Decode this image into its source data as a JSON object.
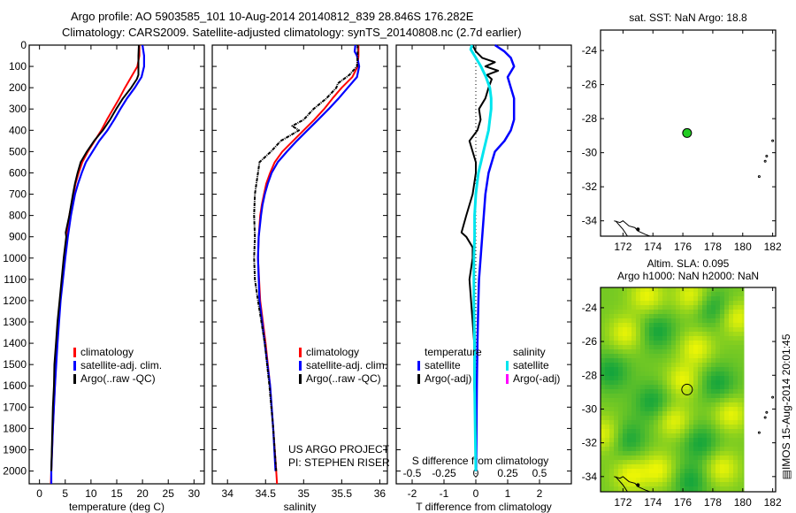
{
  "header": {
    "line1": "Argo profile: AO 5903585_101 10-Aug-2014 20140812_839 28.846S 176.282E",
    "line2": "Climatology: CARS2009. Satellite-adjusted climatology: synTS_20140808.nc (2.7d earlier)"
  },
  "colors": {
    "climatology": "#ff0000",
    "satellite": "#0000ff",
    "argo": "#000000",
    "sal_satellite": "#00e5ee",
    "sal_argo": "#ff00ff",
    "float_marker": "#22cc22"
  },
  "chart_data": [
    {
      "id": "temperature",
      "type": "line",
      "xlabel": "temperature (deg C)",
      "ylabel": "",
      "xlim": [
        -2,
        32
      ],
      "ylim": [
        2060,
        0
      ],
      "xticks": [
        0,
        5,
        10,
        15,
        20,
        25,
        30
      ],
      "yticks": [
        0,
        100,
        200,
        300,
        400,
        500,
        600,
        700,
        800,
        900,
        1000,
        1100,
        1200,
        1300,
        1400,
        1500,
        1600,
        1700,
        1800,
        1900,
        2000
      ],
      "legend": [
        "climatology",
        "satellite-adj. clim.",
        "Argo(..raw -QC)"
      ],
      "legend_location": "center",
      "series": [
        {
          "name": "climatology",
          "depth": [
            0,
            50,
            100,
            150,
            200,
            250,
            300,
            350,
            400,
            450,
            500,
            550,
            600,
            650,
            700,
            800,
            900,
            1000,
            1200,
            1400,
            1600,
            1800,
            2000,
            2060
          ],
          "values": [
            19.4,
            19.4,
            19.0,
            17.8,
            16.6,
            15.5,
            14.3,
            13.1,
            12.0,
            10.7,
            9.4,
            8.3,
            7.6,
            7.0,
            6.6,
            5.8,
            5.3,
            4.8,
            4.0,
            3.4,
            3.0,
            2.6,
            2.3,
            2.2
          ]
        },
        {
          "name": "satellite-adj. clim.",
          "depth": [
            0,
            50,
            100,
            150,
            200,
            250,
            300,
            350,
            400,
            450,
            500,
            550,
            600,
            650,
            700,
            800,
            900,
            1000,
            1200,
            1400,
            1600,
            1800,
            2000,
            2060
          ],
          "values": [
            20.0,
            20.3,
            20.3,
            19.8,
            18.5,
            17.0,
            15.7,
            14.5,
            13.2,
            11.6,
            10.3,
            9.0,
            8.2,
            7.5,
            6.9,
            6.1,
            5.5,
            5.0,
            4.1,
            3.5,
            3.0,
            2.6,
            2.3,
            2.3
          ]
        },
        {
          "name": "Argo(..raw -QC)",
          "depth": [
            0,
            50,
            100,
            140,
            160,
            200,
            250,
            300,
            350,
            400,
            450,
            500,
            550,
            600,
            650,
            700,
            800,
            880,
            900,
            1000,
            1100,
            1200,
            1300,
            1400,
            1500,
            1600,
            1700,
            1800,
            1900,
            2000
          ],
          "values": [
            19.3,
            19.2,
            19.2,
            19.2,
            18.9,
            17.8,
            16.2,
            14.9,
            13.7,
            12.3,
            10.6,
            9.2,
            8.0,
            7.4,
            6.9,
            6.5,
            5.8,
            5.1,
            5.2,
            4.7,
            4.3,
            3.9,
            3.5,
            3.2,
            2.9,
            2.8,
            2.6,
            2.5,
            2.4,
            2.3
          ]
        }
      ]
    },
    {
      "id": "salinity",
      "type": "line",
      "xlabel": "salinity",
      "xlim": [
        33.8,
        36.1
      ],
      "ylim": [
        2060,
        0
      ],
      "xticks": [
        34,
        34.5,
        35,
        35.5,
        36
      ],
      "legend": [
        "climatology",
        "satellite-adj. clim.",
        "Argo(..raw -QC)"
      ],
      "legend_location": "center-right",
      "annotation": [
        "US ARGO PROJECT",
        "PI: STEPHEN RISER"
      ],
      "series": [
        {
          "name": "climatology",
          "depth": [
            0,
            50,
            100,
            150,
            200,
            250,
            300,
            350,
            400,
            450,
            500,
            550,
            600,
            650,
            700,
            750,
            800,
            900,
            1000,
            1200,
            1400,
            1600,
            1800,
            2000,
            2060
          ],
          "values": [
            35.72,
            35.72,
            35.71,
            35.64,
            35.5,
            35.38,
            35.27,
            35.14,
            35.0,
            34.86,
            34.72,
            34.62,
            34.56,
            34.51,
            34.48,
            34.45,
            34.43,
            34.41,
            34.4,
            34.43,
            34.5,
            34.56,
            34.6,
            34.64,
            34.65
          ]
        },
        {
          "name": "satellite-adj. clim.",
          "depth": [
            0,
            30,
            50,
            100,
            150,
            200,
            250,
            300,
            350,
            400,
            450,
            500,
            550,
            600,
            650,
            700,
            750,
            800,
            900,
            1000,
            1200,
            1400,
            1600,
            1800,
            2000
          ],
          "values": [
            35.68,
            35.67,
            35.7,
            35.73,
            35.7,
            35.58,
            35.46,
            35.33,
            35.19,
            35.05,
            34.91,
            34.78,
            34.66,
            34.58,
            34.53,
            34.49,
            34.46,
            34.44,
            34.41,
            34.4,
            34.42,
            34.49,
            34.56,
            34.6,
            34.63
          ]
        },
        {
          "name": "Argo(..raw -QC)",
          "depth": [
            0,
            50,
            100,
            140,
            180,
            200,
            250,
            300,
            350,
            380,
            400,
            450,
            500,
            550,
            600,
            650,
            700,
            800,
            900,
            1000,
            1100,
            1200,
            1400,
            1600,
            1800,
            2000
          ],
          "values": [
            35.71,
            35.71,
            35.7,
            35.6,
            35.45,
            35.43,
            35.3,
            35.13,
            35.0,
            34.85,
            34.94,
            34.7,
            34.57,
            34.42,
            34.4,
            34.38,
            34.36,
            34.35,
            34.36,
            34.35,
            34.36,
            34.4,
            34.49,
            34.55,
            34.6,
            34.64
          ]
        }
      ]
    },
    {
      "id": "differences",
      "type": "line",
      "xlabel": "T difference from climatology",
      "x2label": "S difference from climatology",
      "xlim": [
        -2.5,
        3.0
      ],
      "x2lim": [
        -0.625,
        0.75
      ],
      "ylim": [
        2060,
        0
      ],
      "xticks": [
        -2,
        -1,
        0,
        1,
        2
      ],
      "x2ticks": [
        -0.5,
        -0.25,
        0,
        0.25,
        0.5
      ],
      "x2ticklabels": [
        "-0.5",
        "-0.25",
        "0",
        "0.25",
        "0.5"
      ],
      "legend_groups": [
        {
          "title": "temperature",
          "entries": [
            "satellite",
            "Argo(-adj)"
          ]
        },
        {
          "title": "salinity",
          "entries": [
            "satellite",
            "Argo(-adj)"
          ]
        }
      ],
      "series": [
        {
          "name": "temperature satellite",
          "axis": "T",
          "depth": [
            0,
            30,
            60,
            100,
            150,
            200,
            250,
            300,
            350,
            400,
            450,
            500,
            550,
            600,
            650,
            700,
            800,
            900,
            1000,
            1100,
            1200,
            1400,
            1600,
            1800,
            2000
          ],
          "values": [
            0.6,
            0.9,
            1.1,
            1.2,
            1.0,
            1.1,
            1.2,
            1.2,
            1.2,
            1.1,
            0.9,
            0.6,
            0.5,
            0.4,
            0.35,
            0.3,
            0.25,
            0.2,
            0.15,
            0.1,
            0.08,
            0.05,
            0.03,
            0.02,
            0.01
          ]
        },
        {
          "name": "temperature Argo(-adj)",
          "axis": "T",
          "depth": [
            0,
            30,
            60,
            80,
            100,
            120,
            140,
            160,
            200,
            250,
            300,
            350,
            400,
            450,
            500,
            550,
            600,
            700,
            800,
            880,
            900,
            950,
            1000,
            1100,
            1200,
            1300,
            1400,
            1600,
            1800,
            2000
          ],
          "values": [
            -0.1,
            0.0,
            0.2,
            0.6,
            0.3,
            0.7,
            0.35,
            0.5,
            0.4,
            0.3,
            0.1,
            0.15,
            0.05,
            -0.2,
            -0.1,
            0.0,
            0.0,
            -0.1,
            -0.3,
            -0.45,
            -0.3,
            -0.1,
            -0.1,
            -0.2,
            -0.15,
            -0.1,
            -0.05,
            -0.05,
            0.0,
            0.0
          ]
        },
        {
          "name": "salinity satellite",
          "axis": "S",
          "depth": [
            0,
            20,
            50,
            100,
            150,
            200,
            250,
            300,
            350,
            400,
            450,
            500,
            550,
            600,
            650,
            700,
            800,
            900,
            1000,
            1200,
            1400,
            1600,
            1800,
            2000
          ],
          "values": [
            -0.03,
            -0.04,
            -0.01,
            0.04,
            0.08,
            0.11,
            0.12,
            0.12,
            0.11,
            0.1,
            0.08,
            0.06,
            0.04,
            0.02,
            0.01,
            0.0,
            -0.01,
            -0.01,
            -0.015,
            -0.015,
            -0.01,
            -0.01,
            -0.005,
            0.0
          ]
        }
      ]
    },
    {
      "id": "sst-map",
      "type": "scatter",
      "title": "sat. SST: NaN Argo: 18.8",
      "xlim": [
        170.5,
        182.2
      ],
      "ylim": [
        -34.9,
        -22.8
      ],
      "xticks": [
        172,
        174,
        176,
        178,
        180,
        182
      ],
      "yticks": [
        -24,
        -26,
        -28,
        -30,
        -32,
        -34
      ],
      "points": [
        {
          "lon": 176.282,
          "lat": -28.846,
          "label": "Argo float"
        }
      ]
    },
    {
      "id": "sla-map",
      "type": "heatmap",
      "title_line1": "Altim. SLA: 0.095",
      "title_line2": "Argo h1000: NaN h2000: NaN",
      "xlim": [
        170.5,
        182.2
      ],
      "ylim": [
        -34.9,
        -22.8
      ],
      "xticks": [
        172,
        174,
        176,
        178,
        180,
        182
      ],
      "yticks": [
        -24,
        -26,
        -28,
        -30,
        -32,
        -34
      ],
      "data_extent_lon": [
        170.5,
        180.1
      ],
      "blobs_high": [
        {
          "lon": 172.2,
          "lat": -25.5
        },
        {
          "lon": 176.9,
          "lat": -26.4
        },
        {
          "lon": 176.0,
          "lat": -28.3
        },
        {
          "lon": 175.4,
          "lat": -30.7
        },
        {
          "lon": 179.2,
          "lat": -30.3
        },
        {
          "lon": 179.6,
          "lat": -24.6
        },
        {
          "lon": 176.6,
          "lat": -23.3
        },
        {
          "lon": 170.8,
          "lat": -31.5
        },
        {
          "lon": 172.5,
          "lat": -33.9
        },
        {
          "lon": 174.4,
          "lat": -33.6
        },
        {
          "lon": 178.6,
          "lat": -33.5
        },
        {
          "lon": 173.6,
          "lat": -23.3
        }
      ],
      "blobs_low": [
        {
          "lon": 174.3,
          "lat": -25.4
        },
        {
          "lon": 171.2,
          "lat": -27.8
        },
        {
          "lon": 178.3,
          "lat": -28.5
        },
        {
          "lon": 172.3,
          "lat": -31.8
        },
        {
          "lon": 177.2,
          "lat": -32.0
        },
        {
          "lon": 178.0,
          "lat": -24.0
        },
        {
          "lon": 174.0,
          "lat": -29.6
        },
        {
          "lon": 176.5,
          "lat": -34.3
        }
      ],
      "points": [
        {
          "lon": 176.282,
          "lat": -28.846,
          "label": "Argo float"
        }
      ],
      "side_label": "IMOS 15-Aug-2014 20:01:45"
    }
  ]
}
